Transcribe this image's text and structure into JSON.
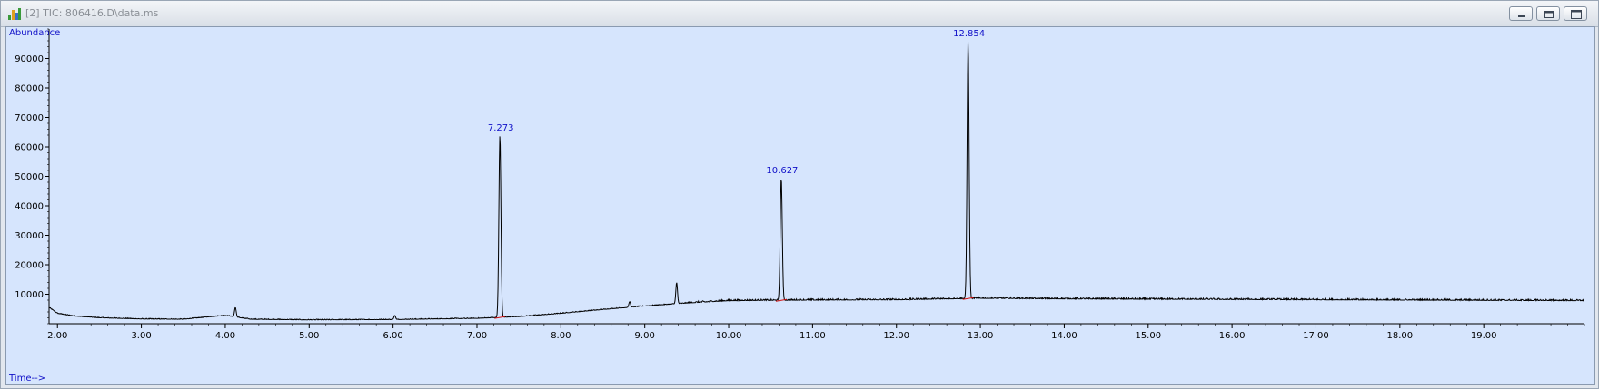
{
  "window": {
    "title": "[2] TIC: 806416.D\\data.ms",
    "icon": "chromatogram-app-icon",
    "buttons": [
      "minimize-icon",
      "restore-icon",
      "close-icon"
    ]
  },
  "colors": {
    "plot_background": "#d6e5fd",
    "trace": "#000000",
    "labels": "#1010c8",
    "baseline_marks": "#d01010"
  },
  "chart_data": {
    "type": "line",
    "xlabel": "Time-->",
    "ylabel": "Abundance",
    "xlim": [
      1.9,
      20.2
    ],
    "ylim": [
      0,
      100000
    ],
    "x_ticks": [
      "2.00",
      "3.00",
      "4.00",
      "5.00",
      "6.00",
      "7.00",
      "8.00",
      "9.00",
      "10.00",
      "11.00",
      "12.00",
      "13.00",
      "14.00",
      "15.00",
      "16.00",
      "17.00",
      "18.00",
      "19.00"
    ],
    "y_ticks": [
      "10000",
      "20000",
      "30000",
      "40000",
      "50000",
      "60000",
      "70000",
      "80000",
      "90000"
    ],
    "grid": false,
    "peaks": [
      {
        "label": "7.273",
        "time": 7.273,
        "abundance": 64000
      },
      {
        "label": "10.627",
        "time": 10.627,
        "abundance": 49500
      },
      {
        "label": "12.854",
        "time": 12.854,
        "abundance": 96000
      }
    ],
    "minor_peaks": [
      {
        "time": 4.12,
        "abundance": 5500
      },
      {
        "time": 9.38,
        "abundance": 14000
      },
      {
        "time": 6.02,
        "abundance": 2800
      },
      {
        "time": 8.82,
        "abundance": 7500
      }
    ],
    "series": [
      {
        "x": [
          1.9,
          2.0,
          2.2,
          2.5,
          3.0,
          3.5,
          3.8,
          4.0,
          4.3,
          5.0,
          6.0,
          7.0,
          7.5,
          8.0,
          8.5,
          9.0,
          9.5,
          10.0,
          11.0,
          12.0,
          13.0,
          14.0,
          15.0,
          16.0,
          17.0,
          18.0,
          19.0,
          20.2
        ],
        "y": [
          5500,
          3500,
          2600,
          2000,
          1600,
          1500,
          2300,
          2800,
          1500,
          1300,
          1400,
          1800,
          2400,
          3500,
          4800,
          6000,
          7000,
          7800,
          8000,
          8100,
          8600,
          8400,
          8300,
          8200,
          8100,
          8000,
          7900,
          7800
        ]
      }
    ]
  }
}
